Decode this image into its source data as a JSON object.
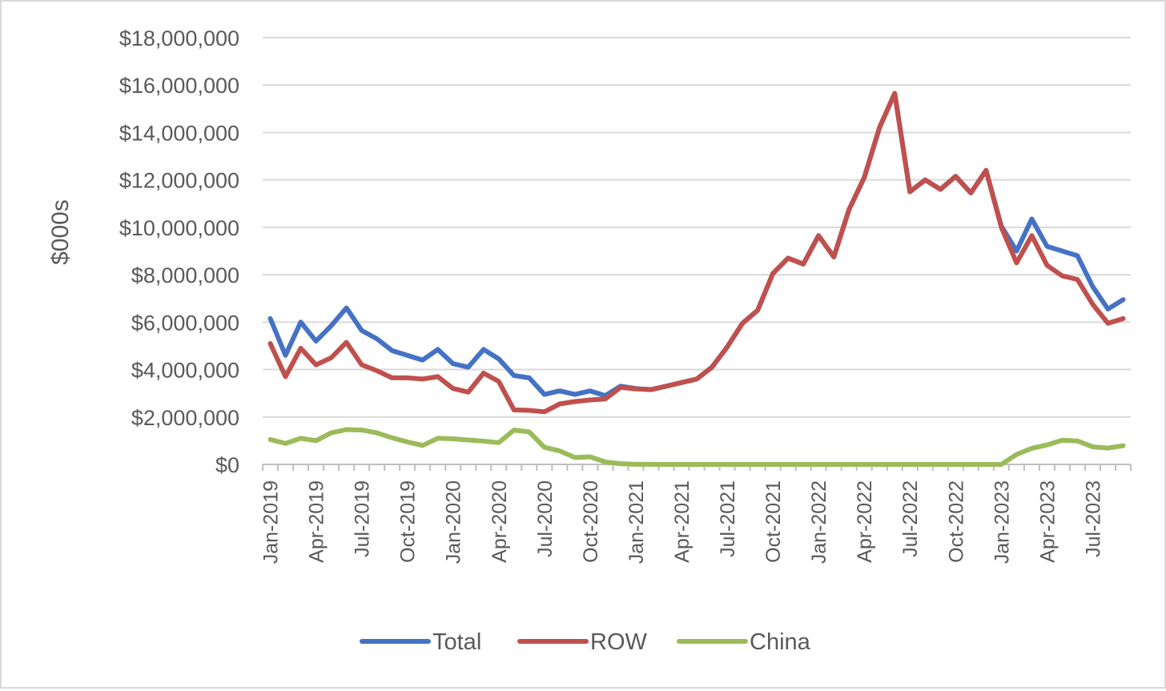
{
  "chart_data": {
    "type": "line",
    "title": "",
    "xlabel": "",
    "ylabel": "$000s",
    "ylim": [
      0,
      18000000
    ],
    "yticks": [
      0,
      2000000,
      4000000,
      6000000,
      8000000,
      10000000,
      12000000,
      14000000,
      16000000,
      18000000
    ],
    "ytick_labels": [
      "$0",
      "$2,000,000",
      "$4,000,000",
      "$6,000,000",
      "$8,000,000",
      "$10,000,000",
      "$12,000,000",
      "$14,000,000",
      "$16,000,000",
      "$18,000,000"
    ],
    "xtick_labels": [
      "Jan-2019",
      "Apr-2019",
      "Jul-2019",
      "Oct-2019",
      "Jan-2020",
      "Apr-2020",
      "Jul-2020",
      "Oct-2020",
      "Jan-2021",
      "Apr-2021",
      "Jul-2021",
      "Oct-2021",
      "Jan-2022",
      "Apr-2022",
      "Jul-2022",
      "Oct-2022",
      "Jan-2023",
      "Apr-2023",
      "Jul-2023"
    ],
    "grid": true,
    "legend_position": "bottom",
    "x": [
      "Jan-2019",
      "Feb-2019",
      "Mar-2019",
      "Apr-2019",
      "May-2019",
      "Jun-2019",
      "Jul-2019",
      "Aug-2019",
      "Sep-2019",
      "Oct-2019",
      "Nov-2019",
      "Dec-2019",
      "Jan-2020",
      "Feb-2020",
      "Mar-2020",
      "Apr-2020",
      "May-2020",
      "Jun-2020",
      "Jul-2020",
      "Aug-2020",
      "Sep-2020",
      "Oct-2020",
      "Nov-2020",
      "Dec-2020",
      "Jan-2021",
      "Feb-2021",
      "Mar-2021",
      "Apr-2021",
      "May-2021",
      "Jun-2021",
      "Jul-2021",
      "Aug-2021",
      "Sep-2021",
      "Oct-2021",
      "Nov-2021",
      "Dec-2021",
      "Jan-2022",
      "Feb-2022",
      "Mar-2022",
      "Apr-2022",
      "May-2022",
      "Jun-2022",
      "Jul-2022",
      "Aug-2022",
      "Sep-2022",
      "Oct-2022",
      "Nov-2022",
      "Dec-2022",
      "Jan-2023",
      "Feb-2023",
      "Mar-2023",
      "Apr-2023",
      "May-2023",
      "Jun-2023",
      "Jul-2023",
      "Aug-2023",
      "Sep-2023"
    ],
    "series": [
      {
        "name": "Total",
        "color": "#4472c4",
        "values": [
          6150000,
          4600000,
          6000000,
          5200000,
          5850000,
          6600000,
          5650000,
          5300000,
          4800000,
          4600000,
          4400000,
          4850000,
          4250000,
          4100000,
          4850000,
          4450000,
          3750000,
          3650000,
          2950000,
          3100000,
          2950000,
          3100000,
          2900000,
          3300000,
          3200000,
          3150000,
          3300000,
          3450000,
          3600000,
          4100000,
          4950000,
          5950000,
          6500000,
          8050000,
          8700000,
          8450000,
          9650000,
          8750000,
          10750000,
          12100000,
          14200000,
          15650000,
          11500000,
          12000000,
          11600000,
          12150000,
          11450000,
          12400000,
          10050000,
          9000000,
          10350000,
          9200000,
          9000000,
          8800000,
          7500000,
          6550000,
          6950000
        ]
      },
      {
        "name": "ROW",
        "color": "#c0504d",
        "values": [
          5100000,
          3700000,
          4900000,
          4200000,
          4500000,
          5150000,
          4200000,
          3950000,
          3650000,
          3650000,
          3600000,
          3700000,
          3200000,
          3050000,
          3850000,
          3500000,
          2300000,
          2280000,
          2220000,
          2550000,
          2650000,
          2720000,
          2760000,
          3250000,
          3180000,
          3160000,
          3300000,
          3450000,
          3600000,
          4100000,
          4950000,
          5950000,
          6500000,
          8050000,
          8700000,
          8450000,
          9650000,
          8750000,
          10750000,
          12100000,
          14200000,
          15650000,
          11500000,
          12000000,
          11600000,
          12150000,
          11450000,
          12400000,
          10000000,
          8500000,
          9650000,
          8400000,
          7950000,
          7800000,
          6750000,
          5950000,
          6150000
        ]
      },
      {
        "name": "China",
        "color": "#9bbb59",
        "values": [
          1050000,
          880000,
          1100000,
          1000000,
          1330000,
          1470000,
          1450000,
          1330000,
          1120000,
          950000,
          800000,
          1100000,
          1080000,
          1030000,
          980000,
          920000,
          1450000,
          1370000,
          720000,
          570000,
          290000,
          320000,
          100000,
          30000,
          5000,
          5000,
          0,
          0,
          0,
          0,
          0,
          0,
          0,
          0,
          0,
          0,
          0,
          0,
          0,
          0,
          0,
          0,
          0,
          0,
          0,
          0,
          0,
          0,
          0,
          420000,
          680000,
          820000,
          1020000,
          990000,
          740000,
          690000,
          790000
        ]
      }
    ]
  }
}
